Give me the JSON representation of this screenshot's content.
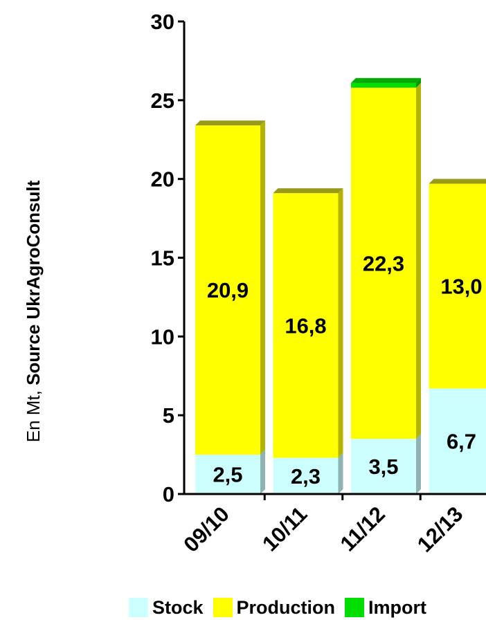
{
  "chart_data": {
    "type": "bar",
    "stacked": true,
    "categories": [
      "09/10",
      "10/11",
      "11/12",
      "12/13"
    ],
    "series": [
      {
        "name": "Stock",
        "values": [
          2.5,
          2.3,
          3.5,
          6.7
        ],
        "labels": [
          "2,5",
          "2,3",
          "3,5",
          "6,7"
        ],
        "color": "#ccffff"
      },
      {
        "name": "Production",
        "values": [
          20.9,
          16.8,
          22.3,
          13.0
        ],
        "labels": [
          "20,9",
          "16,8",
          "22,3",
          "13,0"
        ],
        "color": "#ffff00"
      },
      {
        "name": "Import",
        "values": [
          0,
          0,
          0.3,
          0
        ],
        "labels": [
          "",
          "",
          "",
          ""
        ],
        "color": "#00dd00"
      }
    ],
    "ylim": [
      0,
      30
    ],
    "yticks": [
      "0",
      "5",
      "10",
      "15",
      "20",
      "25",
      "30"
    ],
    "ylabel_light": "En Mt, ",
    "ylabel_bold": "Source UkrAgroConsult",
    "legend_position": "bottom",
    "grid": false
  }
}
